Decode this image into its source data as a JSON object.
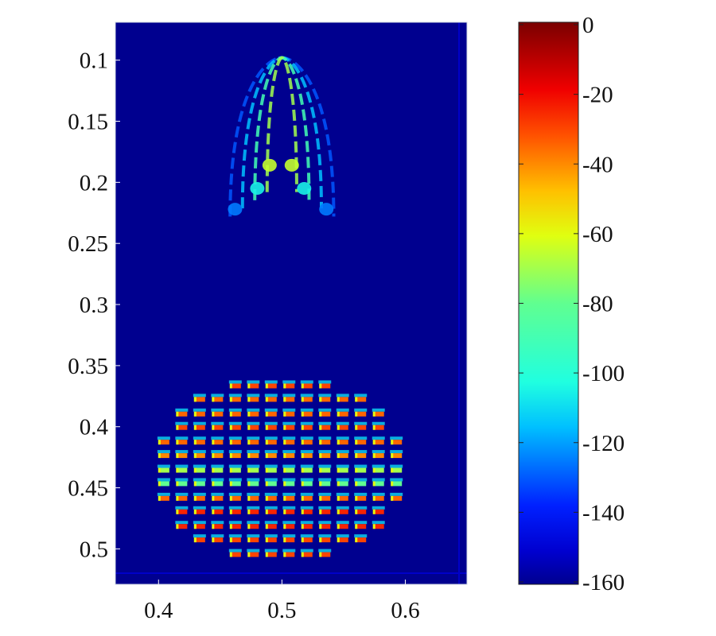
{
  "chart_data": {
    "type": "heatmap",
    "title": "",
    "xlabel": "",
    "ylabel": "",
    "xlim": [
      0.365,
      0.65
    ],
    "ylim": [
      0.069,
      0.529
    ],
    "y_reversed": true,
    "x_ticks": [
      "0.4",
      "0.5",
      "0.6"
    ],
    "x_tick_values": [
      0.4,
      0.5,
      0.6
    ],
    "y_ticks": [
      "0.1",
      "0.15",
      "0.2",
      "0.25",
      "0.3",
      "0.35",
      "0.4",
      "0.45",
      "0.5"
    ],
    "y_tick_values": [
      0.1,
      0.15,
      0.2,
      0.25,
      0.3,
      0.35,
      0.4,
      0.45,
      0.5
    ],
    "background_value": -160,
    "colorbar": {
      "range": [
        -160,
        0
      ],
      "ticks": [
        "0",
        "-20",
        "-40",
        "-60",
        "-80",
        "-100",
        "-120",
        "-140",
        "-160"
      ],
      "tick_values": [
        0,
        -20,
        -40,
        -60,
        -80,
        -100,
        -120,
        -140,
        -160
      ],
      "colormap": "jet"
    },
    "dot_array": {
      "x_center": 0.4985,
      "x_spacing": 0.0145,
      "y_spacing": 0.01145,
      "rows": [
        {
          "y": 0.366,
          "count": 6,
          "value": -30
        },
        {
          "y": 0.377,
          "count": 10,
          "value": -35
        },
        {
          "y": 0.389,
          "count": 12,
          "value": -35
        },
        {
          "y": 0.4,
          "count": 12,
          "value": -30
        },
        {
          "y": 0.412,
          "count": 14,
          "value": -35
        },
        {
          "y": 0.423,
          "count": 14,
          "value": -40
        },
        {
          "y": 0.435,
          "count": 14,
          "value": -70
        },
        {
          "y": 0.446,
          "count": 14,
          "value": -80
        },
        {
          "y": 0.458,
          "count": 14,
          "value": -35
        },
        {
          "y": 0.469,
          "count": 12,
          "value": -25
        },
        {
          "y": 0.481,
          "count": 12,
          "value": -25
        },
        {
          "y": 0.492,
          "count": 10,
          "value": -30
        },
        {
          "y": 0.504,
          "count": 6,
          "value": -30
        }
      ]
    },
    "arch_pattern": {
      "apex": [
        0.5,
        0.098
      ],
      "base_y": 0.228,
      "half_width": 0.042,
      "arcs": [
        {
          "half_width": 0.012,
          "value": -70
        },
        {
          "half_width": 0.022,
          "value": -90
        },
        {
          "half_width": 0.032,
          "value": -115
        },
        {
          "half_width": 0.042,
          "value": -130
        }
      ],
      "blobs": [
        {
          "x": 0.49,
          "y": 0.186,
          "value": -65
        },
        {
          "x": 0.508,
          "y": 0.186,
          "value": -65
        },
        {
          "x": 0.48,
          "y": 0.205,
          "value": -105
        },
        {
          "x": 0.518,
          "y": 0.205,
          "value": -105
        },
        {
          "x": 0.462,
          "y": 0.222,
          "value": -125
        },
        {
          "x": 0.536,
          "y": 0.222,
          "value": -125
        }
      ]
    }
  }
}
